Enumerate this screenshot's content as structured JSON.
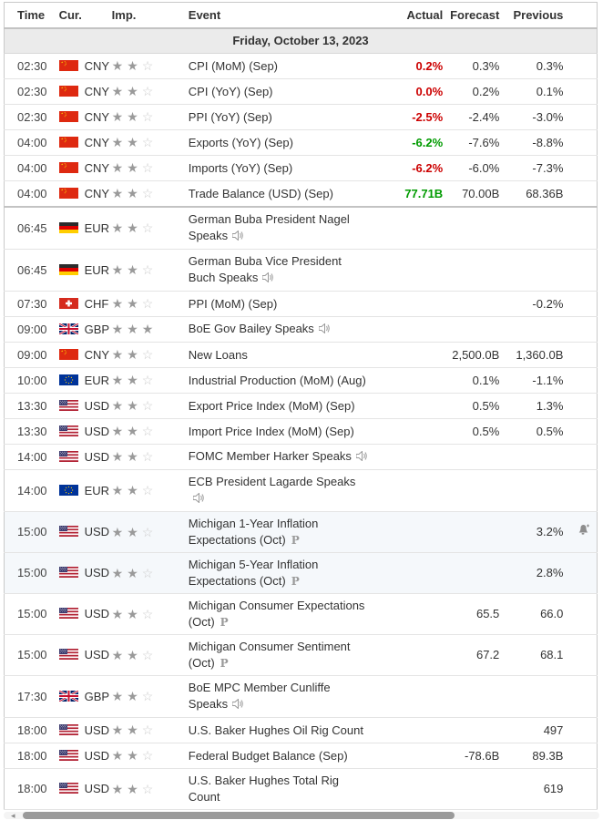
{
  "header": {
    "time": "Time",
    "cur": "Cur.",
    "imp": "Imp.",
    "event": "Event",
    "actual": "Actual",
    "forecast": "Forecast",
    "previous": "Previous"
  },
  "date_row": "Friday, October 13, 2023",
  "colors": {
    "actual_negative": "#cc0000",
    "actual_positive": "#009b00",
    "highlight_row": "#f5f8fb",
    "date_row_bg": "#ebebeb",
    "star_filled": "#9a9a9a",
    "star_empty": "#cccccc"
  },
  "icons": {
    "speaker": "speaker-icon",
    "preliminary": "P",
    "alert": "bell-plus-icon"
  },
  "rows": [
    {
      "time": "02:30",
      "currency": "CNY",
      "flag": "cn",
      "stars": 2,
      "event": "CPI (MoM) (Sep)",
      "actual": "0.2%",
      "actual_color": "red",
      "forecast": "0.3%",
      "previous": "0.3%"
    },
    {
      "time": "02:30",
      "currency": "CNY",
      "flag": "cn",
      "stars": 2,
      "event": "CPI (YoY) (Sep)",
      "actual": "0.0%",
      "actual_color": "red",
      "forecast": "0.2%",
      "previous": "0.1%"
    },
    {
      "time": "02:30",
      "currency": "CNY",
      "flag": "cn",
      "stars": 2,
      "event": "PPI (YoY) (Sep)",
      "actual": "-2.5%",
      "actual_color": "red",
      "forecast": "-2.4%",
      "previous": "-3.0%"
    },
    {
      "time": "04:00",
      "currency": "CNY",
      "flag": "cn",
      "stars": 2,
      "event": "Exports (YoY) (Sep)",
      "actual": "-6.2%",
      "actual_color": "green",
      "forecast": "-7.6%",
      "previous": "-8.8%"
    },
    {
      "time": "04:00",
      "currency": "CNY",
      "flag": "cn",
      "stars": 2,
      "event": "Imports (YoY) (Sep)",
      "actual": "-6.2%",
      "actual_color": "red",
      "forecast": "-6.0%",
      "previous": "-7.3%"
    },
    {
      "time": "04:00",
      "currency": "CNY",
      "flag": "cn",
      "stars": 2,
      "event": "Trade Balance (USD) (Sep)",
      "actual": "77.71B",
      "actual_color": "green",
      "forecast": "70.00B",
      "previous": "68.36B"
    },
    {
      "time": "06:45",
      "currency": "EUR",
      "flag": "de",
      "stars": 2,
      "event": "German Buba President Nagel Speaks",
      "speaker": true,
      "group_start": true
    },
    {
      "time": "06:45",
      "currency": "EUR",
      "flag": "de",
      "stars": 2,
      "event": "German Buba Vice President Buch Speaks",
      "speaker": true
    },
    {
      "time": "07:30",
      "currency": "CHF",
      "flag": "ch",
      "stars": 2,
      "event": "PPI (MoM) (Sep)",
      "previous": "-0.2%"
    },
    {
      "time": "09:00",
      "currency": "GBP",
      "flag": "gb",
      "stars": 3,
      "event": "BoE Gov Bailey Speaks",
      "speaker": true
    },
    {
      "time": "09:00",
      "currency": "CNY",
      "flag": "cn",
      "stars": 2,
      "event": "New Loans",
      "forecast": "2,500.0B",
      "previous": "1,360.0B"
    },
    {
      "time": "10:00",
      "currency": "EUR",
      "flag": "eu",
      "stars": 2,
      "event": "Industrial Production (MoM) (Aug)",
      "forecast": "0.1%",
      "previous": "-1.1%"
    },
    {
      "time": "13:30",
      "currency": "USD",
      "flag": "us",
      "stars": 2,
      "event": "Export Price Index (MoM) (Sep)",
      "forecast": "0.5%",
      "previous": "1.3%"
    },
    {
      "time": "13:30",
      "currency": "USD",
      "flag": "us",
      "stars": 2,
      "event": "Import Price Index (MoM) (Sep)",
      "forecast": "0.5%",
      "previous": "0.5%"
    },
    {
      "time": "14:00",
      "currency": "USD",
      "flag": "us",
      "stars": 2,
      "event": "FOMC Member Harker Speaks",
      "speaker": true
    },
    {
      "time": "14:00",
      "currency": "EUR",
      "flag": "eu",
      "stars": 2,
      "event": "ECB President Lagarde Speaks",
      "speaker": true
    },
    {
      "time": "15:00",
      "currency": "USD",
      "flag": "us",
      "stars": 2,
      "event": "Michigan 1-Year Inflation Expectations (Oct)",
      "preliminary": true,
      "previous": "3.2%",
      "highlight": true,
      "alert": true
    },
    {
      "time": "15:00",
      "currency": "USD",
      "flag": "us",
      "stars": 2,
      "event": "Michigan 5-Year Inflation Expectations (Oct)",
      "preliminary": true,
      "previous": "2.8%",
      "highlight": true
    },
    {
      "time": "15:00",
      "currency": "USD",
      "flag": "us",
      "stars": 2,
      "event": "Michigan Consumer Expectations (Oct)",
      "preliminary": true,
      "forecast": "65.5",
      "previous": "66.0"
    },
    {
      "time": "15:00",
      "currency": "USD",
      "flag": "us",
      "stars": 2,
      "event": "Michigan Consumer Sentiment (Oct)",
      "preliminary": true,
      "forecast": "67.2",
      "previous": "68.1"
    },
    {
      "time": "17:30",
      "currency": "GBP",
      "flag": "gb",
      "stars": 2,
      "event": "BoE MPC Member Cunliffe Speaks",
      "speaker": true
    },
    {
      "time": "18:00",
      "currency": "USD",
      "flag": "us",
      "stars": 2,
      "event": "U.S. Baker Hughes Oil Rig Count",
      "previous": "497"
    },
    {
      "time": "18:00",
      "currency": "USD",
      "flag": "us",
      "stars": 2,
      "event": "Federal Budget Balance (Sep)",
      "forecast": "-78.6B",
      "previous": "89.3B"
    },
    {
      "time": "18:00",
      "currency": "USD",
      "flag": "us",
      "stars": 2,
      "event": "U.S. Baker Hughes Total Rig Count",
      "previous": "619"
    }
  ]
}
